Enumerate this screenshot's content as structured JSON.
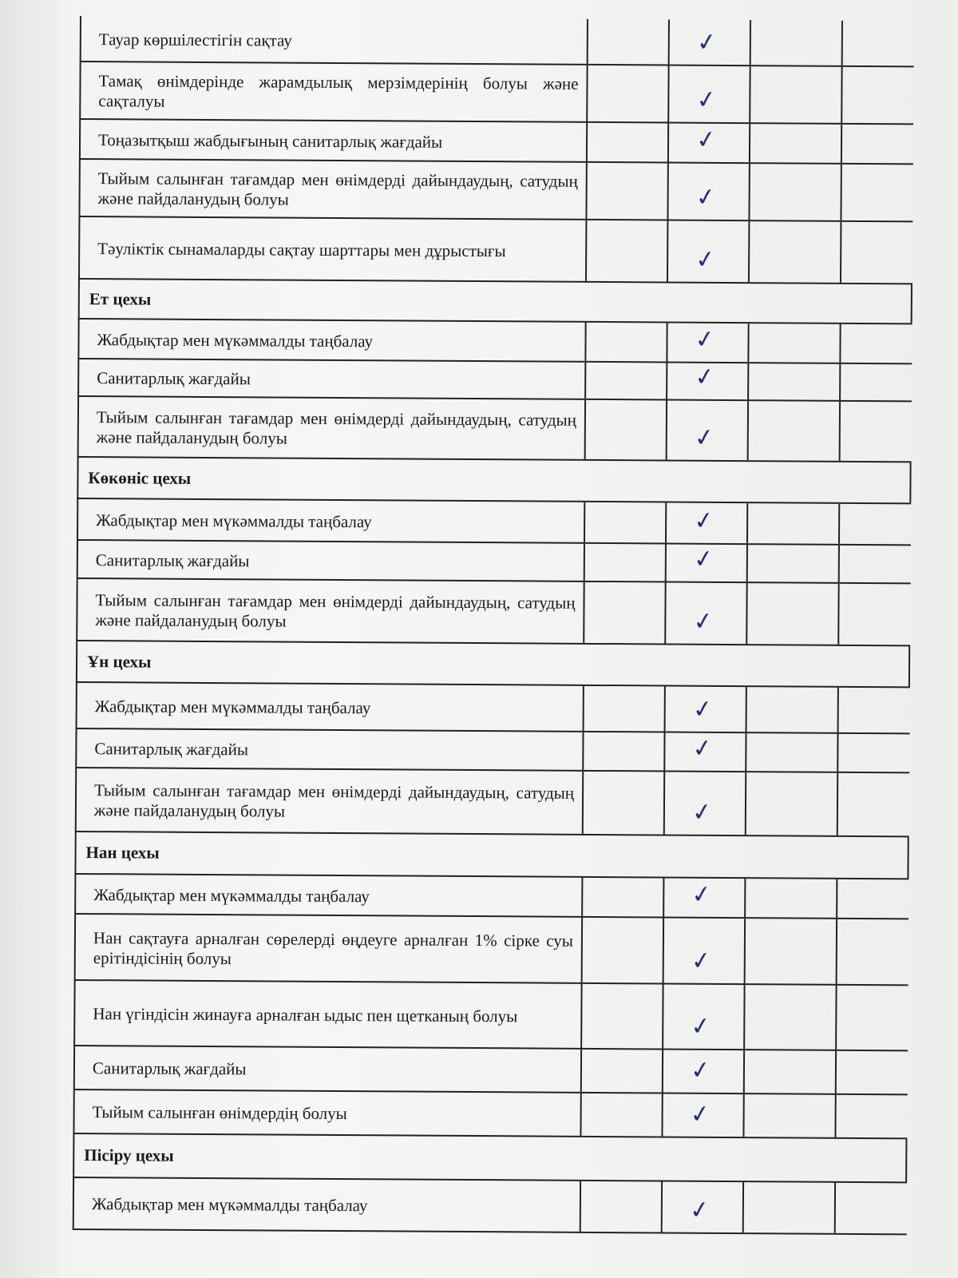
{
  "check_color": "#1d2a8a",
  "check_icon": "checkmark",
  "rows": [
    {
      "type": "item",
      "text": "Тауар көршілестігін сақтау",
      "checked_column": 2
    },
    {
      "type": "item",
      "text": "Тамақ өнімдерінде жарамдылық мерзімдерінің болуы және сақталуы",
      "checked_column": 2
    },
    {
      "type": "item",
      "text": "Тоңазытқыш жабдығының санитарлық жағдайы",
      "checked_column": 2
    },
    {
      "type": "item",
      "text": "Тыйым салынған тағамдар мен өнімдерді дайындаудың, сатудың және пайдаланудың болуы",
      "checked_column": 2
    },
    {
      "type": "item",
      "text": "Тәуліктік сынамаларды сақтау шарттары мен дұрыстығы",
      "checked_column": 2
    },
    {
      "type": "section",
      "text": "Ет цехы"
    },
    {
      "type": "item",
      "text": "Жабдықтар мен мүкәммалды таңбалау",
      "checked_column": 2
    },
    {
      "type": "item",
      "text": "Санитарлық жағдайы",
      "checked_column": 2
    },
    {
      "type": "item",
      "text": "Тыйым салынған тағамдар мен өнімдерді дайындаудың, сатудың және пайдаланудың болуы",
      "checked_column": 2
    },
    {
      "type": "section",
      "text": "Көкөніс цехы"
    },
    {
      "type": "item",
      "text": "Жабдықтар мен мүкәммалды таңбалау",
      "checked_column": 2
    },
    {
      "type": "item",
      "text": "Санитарлық жағдайы",
      "checked_column": 2
    },
    {
      "type": "item",
      "text": "Тыйым салынған тағамдар мен өнімдерді дайындаудың, сатудың және пайдаланудың болуы",
      "checked_column": 2
    },
    {
      "type": "section",
      "text": "Ұн цехы"
    },
    {
      "type": "item",
      "text": "Жабдықтар мен мүкәммалды таңбалау",
      "checked_column": 2
    },
    {
      "type": "item",
      "text": "Санитарлық жағдайы",
      "checked_column": 2
    },
    {
      "type": "item",
      "text": "Тыйым салынған тағамдар мен өнімдерді дайындаудың, сатудың және пайдаланудың болуы",
      "checked_column": 2
    },
    {
      "type": "section",
      "text": "Нан цехы"
    },
    {
      "type": "item",
      "text": "Жабдықтар мен мүкәммалды таңбалау",
      "checked_column": 2
    },
    {
      "type": "item",
      "text": "Нан сақтауға арналған сөрелерді өңдеуге арналған 1% сірке суы ерітіндісінің болуы",
      "checked_column": 2
    },
    {
      "type": "item",
      "text": "Нан үгіндісін жинауға арналған ыдыс пен щетканың болуы",
      "checked_column": 2
    },
    {
      "type": "item",
      "text": "Санитарлық жағдайы",
      "checked_column": 2
    },
    {
      "type": "item",
      "text": "Тыйым салынған өнімдердің болуы",
      "checked_column": 2
    },
    {
      "type": "section",
      "text": "Пісіру цехы"
    },
    {
      "type": "item",
      "text": "Жабдықтар мен мүкәммалды таңбалау",
      "checked_column": 2
    }
  ]
}
